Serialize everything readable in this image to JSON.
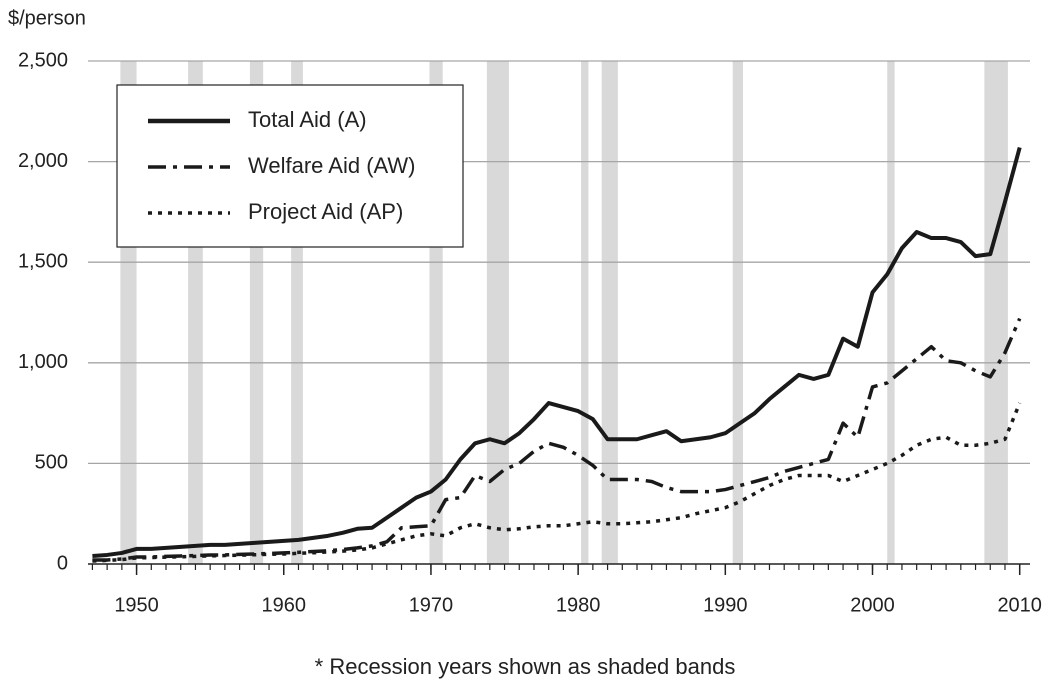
{
  "chart_data": {
    "type": "line",
    "y_axis_label": "$/person",
    "footnote": "* Recession years shown as shaded bands",
    "x": [
      1947,
      1948,
      1949,
      1950,
      1951,
      1952,
      1953,
      1954,
      1955,
      1956,
      1957,
      1958,
      1959,
      1960,
      1961,
      1962,
      1963,
      1964,
      1965,
      1966,
      1967,
      1968,
      1969,
      1970,
      1971,
      1972,
      1973,
      1974,
      1975,
      1976,
      1977,
      1978,
      1979,
      1980,
      1981,
      1982,
      1983,
      1984,
      1985,
      1986,
      1987,
      1988,
      1989,
      1990,
      1991,
      1992,
      1993,
      1994,
      1995,
      1996,
      1997,
      1998,
      1999,
      2000,
      2001,
      2002,
      2003,
      2004,
      2005,
      2006,
      2007,
      2008,
      2009,
      2010
    ],
    "series": [
      {
        "name": "Total Aid (A)",
        "color": "#1a1a1a",
        "dash": "solid",
        "values": [
          40,
          45,
          55,
          75,
          75,
          80,
          85,
          90,
          95,
          95,
          100,
          105,
          110,
          115,
          120,
          130,
          140,
          155,
          175,
          180,
          230,
          280,
          330,
          360,
          420,
          520,
          600,
          620,
          600,
          650,
          720,
          800,
          780,
          760,
          720,
          620,
          620,
          620,
          640,
          660,
          610,
          620,
          630,
          650,
          700,
          750,
          820,
          880,
          940,
          920,
          940,
          1120,
          1080,
          1350,
          1440,
          1570,
          1650,
          1620,
          1620,
          1600,
          1530,
          1540,
          1800,
          2070
        ]
      },
      {
        "name": "Welfare Aid (AW)",
        "color": "#1a1a1a",
        "dash": "dashdot",
        "values": [
          20,
          20,
          25,
          35,
          35,
          38,
          40,
          42,
          45,
          45,
          48,
          50,
          52,
          55,
          58,
          62,
          66,
          72,
          80,
          90,
          110,
          180,
          185,
          190,
          320,
          330,
          440,
          410,
          470,
          500,
          560,
          600,
          580,
          540,
          490,
          420,
          420,
          420,
          410,
          380,
          360,
          360,
          360,
          370,
          390,
          410,
          430,
          460,
          480,
          500,
          520,
          700,
          630,
          880,
          900,
          960,
          1020,
          1080,
          1010,
          1000,
          960,
          930,
          1050,
          1220
        ]
      },
      {
        "name": "Project Aid (AP)",
        "color": "#1a1a1a",
        "dash": "dotted",
        "values": [
          15,
          18,
          22,
          30,
          32,
          34,
          36,
          38,
          40,
          42,
          44,
          46,
          48,
          50,
          53,
          56,
          60,
          64,
          70,
          80,
          100,
          120,
          140,
          150,
          140,
          180,
          200,
          180,
          170,
          175,
          185,
          190,
          190,
          200,
          210,
          200,
          200,
          205,
          210,
          220,
          230,
          250,
          265,
          280,
          310,
          350,
          390,
          420,
          440,
          440,
          440,
          410,
          440,
          470,
          500,
          540,
          590,
          620,
          630,
          590,
          590,
          600,
          620,
          800
        ]
      }
    ],
    "recessions": [
      [
        1948.9,
        1950.0
      ],
      [
        1953.5,
        1954.5
      ],
      [
        1957.7,
        1958.6
      ],
      [
        1960.5,
        1961.3
      ],
      [
        1969.9,
        1970.8
      ],
      [
        1973.8,
        1975.3
      ],
      [
        1980.2,
        1980.7
      ],
      [
        1981.6,
        1982.7
      ],
      [
        1990.5,
        1991.2
      ],
      [
        2001.0,
        2001.5
      ],
      [
        2007.6,
        2009.2
      ]
    ],
    "recession_color": "#d9d9d9",
    "xlim": [
      1946.7,
      2010.7
    ],
    "xticks": [
      1950,
      1960,
      1970,
      1980,
      1990,
      2000,
      2010
    ],
    "xminorticks": [
      1947,
      1948,
      1949,
      1950,
      1951,
      1952,
      1953,
      1954,
      1955,
      1956,
      1957,
      1958,
      1959,
      1960,
      1961,
      1962,
      1963,
      1964,
      1965,
      1966,
      1967,
      1968,
      1969,
      1970,
      1971,
      1972,
      1973,
      1974,
      1975,
      1976,
      1977,
      1978,
      1979,
      1980,
      1981,
      1982,
      1983,
      1984,
      1985,
      1986,
      1987,
      1988,
      1989,
      1990,
      1991,
      1992,
      1993,
      1994,
      1995,
      1996,
      1997,
      1998,
      1999,
      2000,
      2001,
      2002,
      2003,
      2004,
      2005,
      2006,
      2007,
      2008,
      2009,
      2010
    ],
    "ylim": [
      0,
      2500
    ],
    "yticks": [
      0,
      500,
      {
        "value": 1000,
        "label": "1,000"
      },
      {
        "value": 1500,
        "label": "1,500"
      },
      {
        "value": 2000,
        "label": "2,000"
      },
      {
        "value": 2500,
        "label": "2,500"
      }
    ],
    "grid": true,
    "legend": "upper left"
  }
}
